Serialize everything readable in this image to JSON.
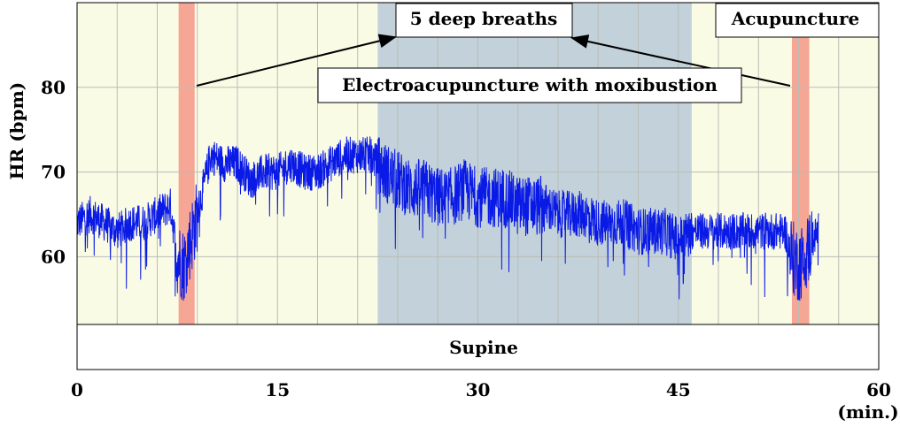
{
  "chart_data": {
    "type": "line",
    "title": "",
    "ylabel": "HR (bpm)",
    "xlabel": "",
    "x_unit": "(min.)",
    "xlim": [
      0,
      60
    ],
    "ylim": [
      52,
      90
    ],
    "x_ticks": [
      "0",
      "15",
      "30",
      "45",
      "60"
    ],
    "y_ticks": [
      "60",
      "70",
      "80"
    ],
    "grid": true,
    "colors": {
      "background": "#FAFBE4",
      "shaded_period": "#C2D1DA",
      "marker_band": "#F6A694",
      "series": "#0A1AE6",
      "grid": "#B9BDB6"
    },
    "series": [
      {
        "name": "",
        "x": [
          0,
          1,
          2,
          3,
          4,
          5,
          6,
          7,
          7.5,
          8,
          8.5,
          9,
          10,
          11,
          12,
          13,
          14,
          15,
          16,
          17,
          18,
          19,
          20,
          21,
          22,
          23,
          24,
          25,
          26,
          27,
          28,
          29,
          30,
          31,
          32,
          33,
          34,
          35,
          36,
          37,
          38,
          39,
          40,
          41,
          42,
          43,
          44,
          45,
          46,
          47,
          48,
          49,
          50,
          51,
          52,
          53,
          53.5,
          54,
          54.5,
          55,
          55.5
        ],
        "y": [
          64,
          65,
          64,
          63,
          64,
          64,
          65,
          66,
          60,
          59,
          62,
          65,
          72,
          71,
          71,
          69,
          70,
          70,
          71,
          70,
          70,
          71,
          72,
          72,
          72,
          70,
          69,
          68,
          68,
          67,
          67,
          68,
          67,
          67,
          67,
          66,
          66,
          66,
          65,
          65,
          65,
          64,
          64,
          64,
          63,
          63,
          63,
          62,
          63,
          63,
          63,
          63,
          63,
          63,
          63,
          63,
          60,
          59,
          60,
          62,
          63
        ]
      }
    ],
    "shaded_periods": [
      {
        "label": "Electroacupuncture with moxibustion",
        "x_start": 22.5,
        "x_end": 46
      }
    ],
    "marker_bands": [
      {
        "x_start": 7.6,
        "x_end": 8.8
      },
      {
        "x_start": 53.5,
        "x_end": 54.8
      }
    ],
    "annotations": {
      "deep_breaths": "5 deep breaths",
      "acupuncture": "Acupuncture",
      "electro": "Electroacupuncture with moxibustion"
    },
    "posture_label": "Supine"
  }
}
